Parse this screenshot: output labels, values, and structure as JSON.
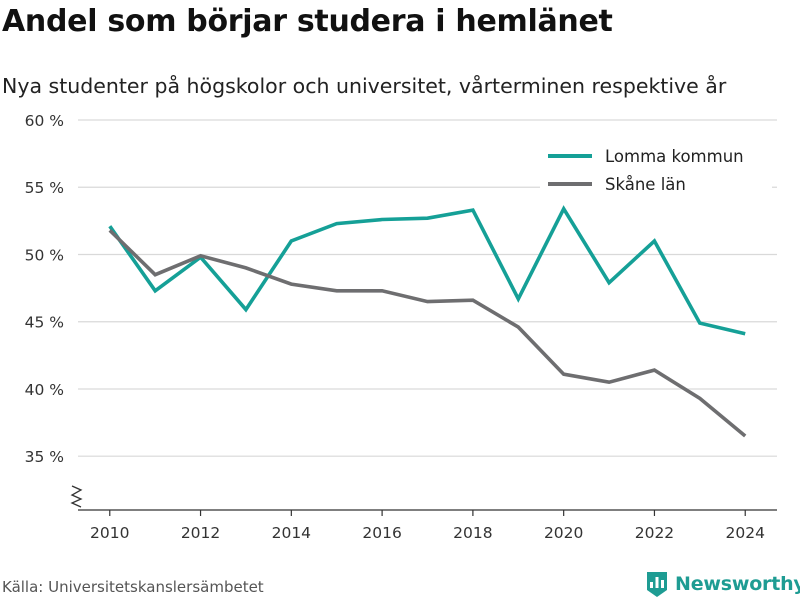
{
  "title": "Andel som börjar studera i hemlänet",
  "subtitle": "Nya studenter på högskolor och universitet, vårterminen respektive år",
  "source": "Källa: Universitetskanslersämbetet",
  "brand": {
    "name": "Newsworthy",
    "logo_icon": "bar-chart-badge-icon",
    "color": "#1e9c93"
  },
  "chart_data": {
    "type": "line",
    "x": [
      2010,
      2011,
      2012,
      2013,
      2014,
      2015,
      2016,
      2017,
      2018,
      2019,
      2020,
      2021,
      2022,
      2023,
      2024
    ],
    "xticks": [
      2010,
      2012,
      2014,
      2016,
      2018,
      2020,
      2022,
      2024
    ],
    "xtick_labels": [
      "2010",
      "2012",
      "2014",
      "2016",
      "2018",
      "2020",
      "2022",
      "2024"
    ],
    "yticks": [
      35,
      40,
      45,
      50,
      55,
      60
    ],
    "ytick_labels": [
      "35 %",
      "40 %",
      "45 %",
      "50 %",
      "55 %",
      "60 %"
    ],
    "xlim": [
      2009.3,
      2024.7
    ],
    "ylim": [
      31,
      60
    ],
    "axis_break": true,
    "grid": true,
    "legend_position": "top-right",
    "series": [
      {
        "name": "Lomma kommun",
        "color": "#15a097",
        "values": [
          52.1,
          47.3,
          49.8,
          45.9,
          51.0,
          52.3,
          52.6,
          52.7,
          53.3,
          46.7,
          53.4,
          47.9,
          51.0,
          44.9,
          44.1
        ]
      },
      {
        "name": "Skåne län",
        "color": "#6e6e70",
        "values": [
          51.8,
          48.5,
          49.9,
          49.0,
          47.8,
          47.3,
          47.3,
          46.5,
          46.6,
          44.6,
          41.1,
          40.5,
          41.4,
          39.3,
          36.5
        ]
      }
    ]
  }
}
